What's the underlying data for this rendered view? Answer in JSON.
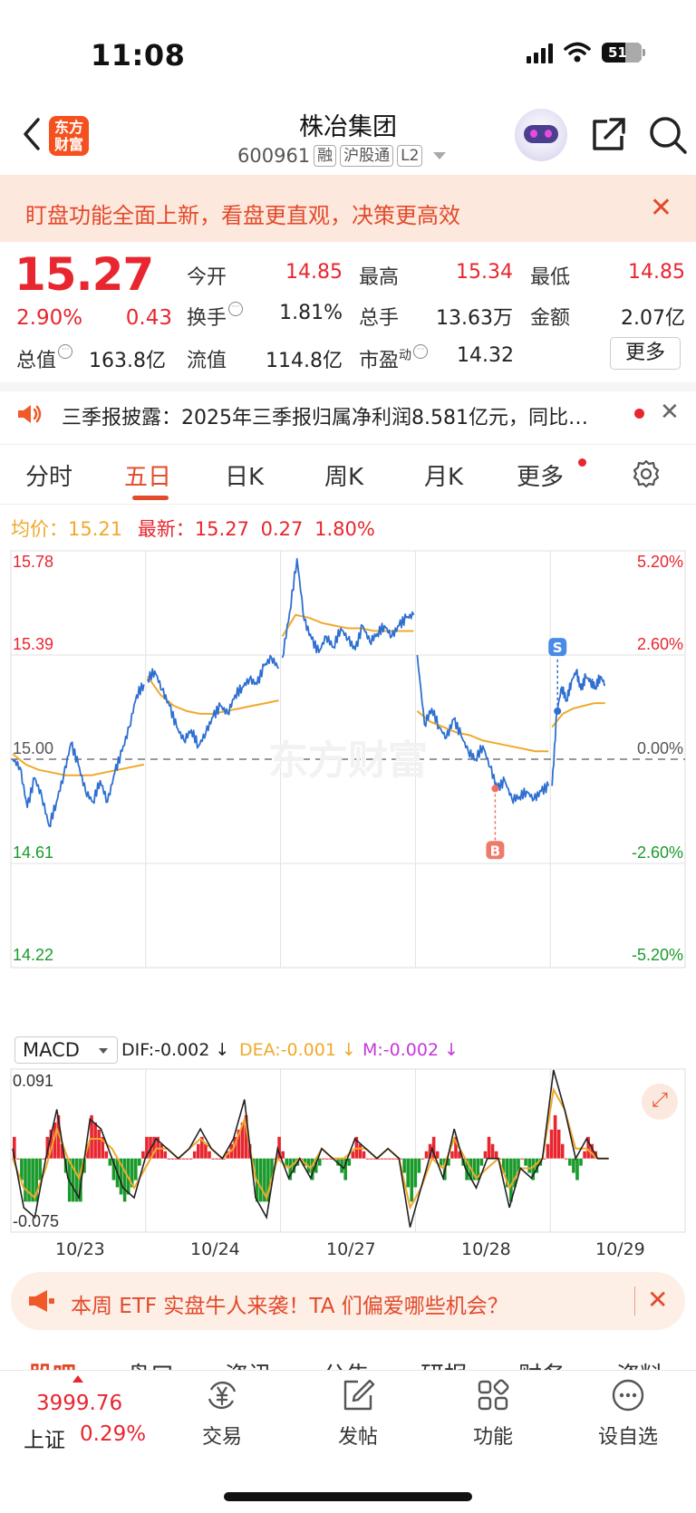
{
  "status_bar": {
    "time": "11:08",
    "battery": "51"
  },
  "header": {
    "logo_text": "东方财富",
    "title": "株冶集团",
    "code": "600961",
    "tags": [
      "融",
      "沪股通",
      "L2"
    ]
  },
  "banner": {
    "text": "盯盘功能全面上新，看盘更直观，决策更高效",
    "close": "✕"
  },
  "quote": {
    "price": "15.27",
    "change_pct": "2.90%",
    "change": "0.43",
    "open": {
      "label": "今开",
      "value": "14.85"
    },
    "high": {
      "label": "最高",
      "value": "15.34"
    },
    "low": {
      "label": "最低",
      "value": "14.85"
    },
    "turnover_rate": {
      "label": "换手",
      "value": "1.81%"
    },
    "volume": {
      "label": "总手",
      "value": "13.63万"
    },
    "amount": {
      "label": "金额",
      "value": "2.07亿"
    },
    "market_cap": {
      "label": "总值",
      "value": "163.8亿"
    },
    "float_cap": {
      "label": "流值",
      "value": "114.8亿"
    },
    "pe": {
      "label": "市盈",
      "sup": "动",
      "value": "14.32"
    },
    "more": "更多"
  },
  "news": {
    "text": "三季报披露：2025年三季报归属净利润8.581亿元，同比…",
    "close": "✕"
  },
  "tabs": [
    {
      "label": "分时"
    },
    {
      "label": "五日"
    },
    {
      "label": "日K"
    },
    {
      "label": "周K"
    },
    {
      "label": "月K"
    },
    {
      "label": "更多"
    }
  ],
  "legend": {
    "avg_label": "均价：",
    "avg_value": "15.21",
    "latest_label": "最新：",
    "latest_value": "15.27",
    "latest_change": "0.27",
    "latest_pct": "1.80%"
  },
  "chart_data": {
    "type": "line",
    "title": "",
    "y_left_ticks": [
      "15.78",
      "15.39",
      "15.00",
      "14.61",
      "14.22"
    ],
    "y_right_ticks": [
      "5.20%",
      "2.60%",
      "0.00%",
      "-2.60%",
      "-5.20%"
    ],
    "ylim": [
      14.22,
      15.78
    ],
    "prev_close": 15.0,
    "x_labels": [
      "10/23",
      "10/24",
      "10/27",
      "10/28",
      "10/29"
    ],
    "series": [
      {
        "name": "",
        "color": "#2f6fd1",
        "kind": "price"
      },
      {
        "name": "",
        "color": "#f0a92a",
        "kind": "average"
      }
    ],
    "days": [
      {
        "price_points": [
          15.0,
          14.97,
          14.82,
          14.93,
          14.86,
          14.75,
          14.84,
          14.94,
          15.06,
          14.98,
          14.88,
          14.84,
          14.92,
          14.84,
          14.95,
          15.03,
          15.12,
          15.24,
          15.28
        ],
        "avg_points": [
          15.02,
          14.98,
          14.96,
          14.95,
          14.94,
          14.94,
          14.94,
          14.95,
          14.96,
          14.97,
          14.98
        ]
      },
      {
        "price_points": [
          15.3,
          15.33,
          15.26,
          15.2,
          15.12,
          15.07,
          15.11,
          15.05,
          15.1,
          15.16,
          15.2,
          15.17,
          15.24,
          15.27,
          15.3,
          15.28,
          15.35,
          15.38,
          15.34
        ],
        "avg_points": [
          15.31,
          15.24,
          15.2,
          15.18,
          15.17,
          15.17,
          15.18,
          15.19,
          15.2,
          15.21,
          15.22
        ]
      },
      {
        "price_points": [
          15.38,
          15.55,
          15.75,
          15.52,
          15.45,
          15.4,
          15.46,
          15.42,
          15.49,
          15.45,
          15.41,
          15.5,
          15.44,
          15.47,
          15.5,
          15.46,
          15.5,
          15.53,
          15.54
        ],
        "avg_points": [
          15.46,
          15.54,
          15.53,
          15.51,
          15.5,
          15.49,
          15.49,
          15.48,
          15.48,
          15.48,
          15.48
        ]
      },
      {
        "price_points": [
          15.39,
          15.13,
          15.19,
          15.12,
          15.08,
          15.15,
          15.09,
          15.03,
          15.0,
          15.05,
          14.97,
          14.89,
          14.92,
          14.85,
          14.86,
          14.88,
          14.85,
          14.88,
          14.9
        ],
        "avg_points": [
          15.18,
          15.14,
          15.12,
          15.1,
          15.09,
          15.07,
          15.06,
          15.05,
          15.04,
          15.03,
          15.03
        ]
      },
      {
        "price_points": [
          14.9,
          15.18,
          15.27,
          15.22,
          15.29,
          15.33,
          15.26,
          15.31,
          15.29,
          15.27,
          15.31,
          15.28
        ],
        "avg_points": [
          15.12,
          15.17,
          15.19,
          15.2,
          15.21,
          15.21
        ]
      }
    ],
    "markers": [
      {
        "label": "S",
        "day": 4,
        "price": 15.18
      },
      {
        "label": "B",
        "day": 3,
        "price": 14.89
      }
    ]
  },
  "macd": {
    "selector": "MACD",
    "dif": "DIF:-0.002 ↓",
    "dea": "DEA:-0.001 ↓",
    "m": "M:-0.002 ↓",
    "top_label": "0.091",
    "bottom_label": "-0.075",
    "ylim": [
      -0.075,
      0.091
    ],
    "dif_points": [
      0.01,
      -0.05,
      -0.06,
      0.0,
      0.05,
      -0.02,
      -0.04,
      0.04,
      0.03,
      0.0,
      -0.03,
      -0.04,
      0.0,
      0.02,
      0.01,
      0.0,
      0.01,
      0.03,
      0.01,
      0.0,
      0.02,
      0.06,
      -0.04,
      -0.06,
      0.01,
      -0.02,
      0.0,
      -0.02,
      0.01,
      0.0,
      -0.01,
      0.02,
      0.01,
      0.0,
      0.01,
      0.0,
      -0.07,
      -0.03,
      0.01,
      -0.02,
      0.03,
      -0.01,
      -0.03,
      0.0,
      0.0,
      -0.05,
      -0.01,
      -0.02,
      0.0,
      0.09,
      0.05,
      0.0,
      0.02,
      0.0,
      0.0
    ],
    "dea_points": [
      0.0,
      -0.03,
      -0.04,
      -0.01,
      0.03,
      0.0,
      -0.02,
      0.02,
      0.02,
      0.01,
      -0.01,
      -0.03,
      -0.01,
      0.01,
      0.01,
      0.0,
      0.01,
      0.02,
      0.01,
      0.0,
      0.01,
      0.04,
      -0.02,
      -0.04,
      0.0,
      -0.01,
      0.0,
      -0.01,
      0.01,
      0.0,
      0.0,
      0.01,
      0.01,
      0.0,
      0.01,
      0.0,
      -0.05,
      -0.03,
      0.0,
      -0.01,
      0.02,
      0.0,
      -0.02,
      -0.01,
      0.0,
      -0.03,
      -0.01,
      -0.01,
      0.0,
      0.07,
      0.05,
      0.01,
      0.01,
      0.0,
      0.0
    ]
  },
  "etf_banner": {
    "text": "本周 ETF 实盘牛人来袭！TA 们偏爱哪些机会？",
    "close": "✕"
  },
  "cut_tabs": [
    "股吧",
    "盘口",
    "资讯",
    "公告",
    "研报",
    "财务",
    "资料"
  ],
  "bottom_bar": {
    "index_value": "3999.76",
    "index_name": "上证",
    "index_pct": "0.29%",
    "items": [
      {
        "label": "交易"
      },
      {
        "label": "发帖"
      },
      {
        "label": "功能"
      },
      {
        "label": "设自选"
      }
    ]
  }
}
